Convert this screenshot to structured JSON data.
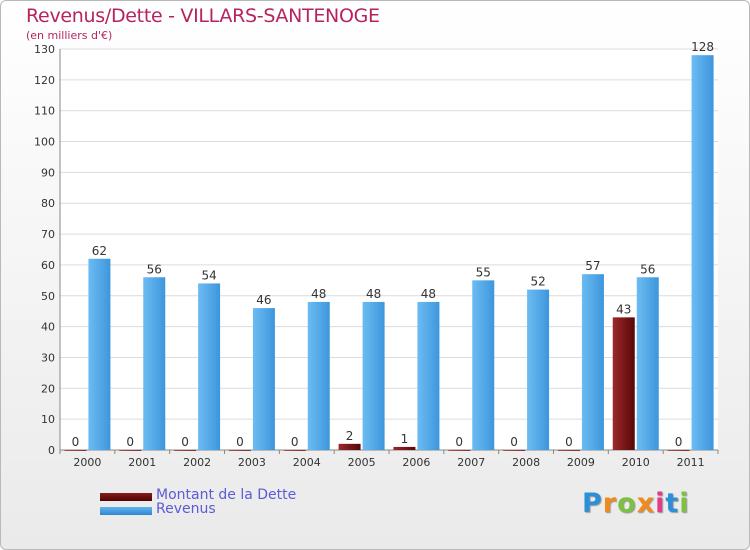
{
  "chart_data": {
    "type": "bar",
    "title": "Revenus/Dette - VILLARS-SANTENOGE",
    "subtitle": "(en milliers d'€)",
    "categories": [
      "2000",
      "2001",
      "2002",
      "2003",
      "2004",
      "2005",
      "2006",
      "2007",
      "2008",
      "2009",
      "2010",
      "2011"
    ],
    "series": [
      {
        "name": "Montant de la Dette",
        "color": "#6b0f0f",
        "values": [
          0,
          0,
          0,
          0,
          0,
          2,
          1,
          0,
          0,
          0,
          43,
          0
        ]
      },
      {
        "name": "Revenus",
        "color": "#4aa3e6",
        "values": [
          62,
          56,
          54,
          46,
          48,
          48,
          48,
          55,
          52,
          57,
          56,
          128
        ]
      }
    ],
    "ylim": [
      0,
      130
    ],
    "yticks": [
      0,
      10,
      20,
      30,
      40,
      50,
      60,
      70,
      80,
      90,
      100,
      110,
      120,
      130
    ],
    "grid": true,
    "legend": "bottom-left"
  },
  "logo": {
    "text": "Proxiti",
    "letters": [
      "P",
      "r",
      "o",
      "x",
      "i",
      "t",
      "i"
    ],
    "colors": [
      "#2d8fd8",
      "#f08a1c",
      "#7cc142",
      "#f08a1c",
      "#e23b8a",
      "#2d8fd8",
      "#7cc142"
    ]
  }
}
